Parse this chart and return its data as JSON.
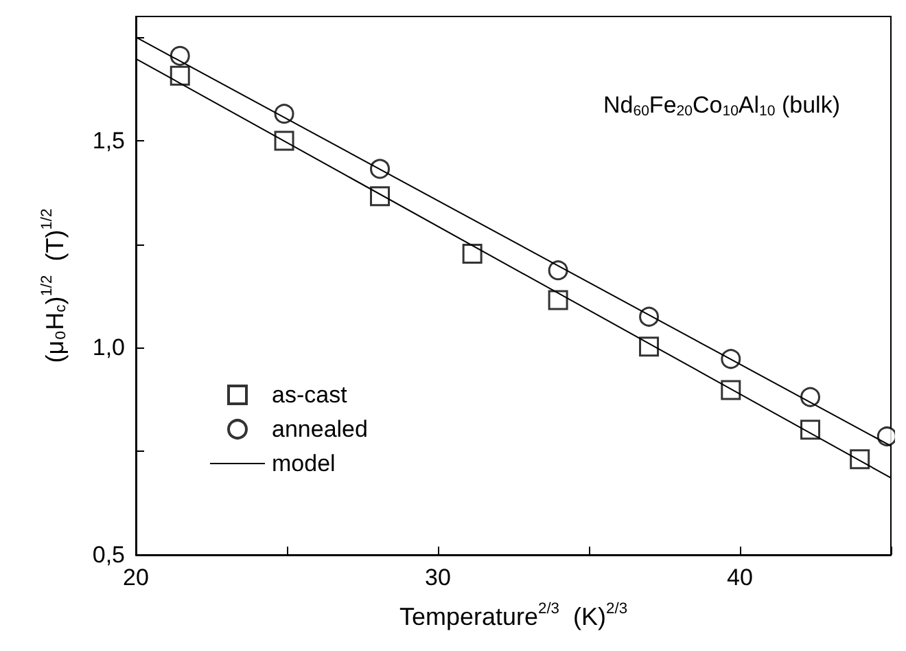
{
  "chart_data": {
    "type": "scatter",
    "xlabel": "Temperature$^{2/3}$  (K)$^{2/3}$",
    "ylabel": "(μ₀H$_{c}$)$^{1/2}$  (T)$^{1/2}$",
    "annotations": [
      "Nd$_{60}$Fe$_{20}$Co$_{10}$Al$_{10}$ (bulk)"
    ],
    "series": [
      {
        "name": "as-cast",
        "type": "scatter",
        "marker": "square",
        "color": "#000000",
        "x": [
          21.46,
          24.91,
          28.08,
          31.14,
          33.98,
          36.99,
          39.7,
          42.33,
          43.97
        ],
        "values": [
          1.657,
          1.5,
          1.366,
          1.227,
          1.115,
          1.003,
          0.898,
          0.802,
          0.731
        ]
      },
      {
        "name": "annealed",
        "type": "scatter",
        "marker": "circle",
        "color": "#000000",
        "x": [
          21.46,
          24.91,
          28.08,
          33.98,
          36.99,
          39.7,
          42.33,
          44.87
        ],
        "values": [
          1.705,
          1.565,
          1.432,
          1.187,
          1.075,
          0.973,
          0.881,
          0.786
        ]
      },
      {
        "name": "model",
        "type": "line",
        "marker": "none",
        "line_style": "solid",
        "color": "#000000",
        "x": [
          20,
          45
        ],
        "values": [
          1.698,
          0.686
        ]
      },
      {
        "type": "line",
        "marker": "none",
        "line_style": "solid",
        "color": "#000000",
        "x": [
          20,
          45
        ],
        "values": [
          1.75,
          0.763
        ]
      }
    ],
    "xlim": [
      20,
      45
    ],
    "ylim": [
      0.5,
      1.8
    ],
    "xticks": [
      20,
      {
        "value": 25,
        "label": null
      },
      30,
      {
        "value": 35,
        "label": null
      },
      40,
      {
        "value": 45,
        "label": null
      }
    ],
    "yticks": [
      {
        "value": 0.5,
        "label": "0,5"
      },
      {
        "value": 0.75,
        "label": null
      },
      {
        "value": 1.0,
        "label": "1,0"
      },
      {
        "value": 1.25,
        "label": null
      },
      {
        "value": 1.5,
        "label": "1,5"
      },
      {
        "value": 1.75,
        "label": null
      }
    ],
    "grid": false,
    "legend": "bottom left"
  }
}
